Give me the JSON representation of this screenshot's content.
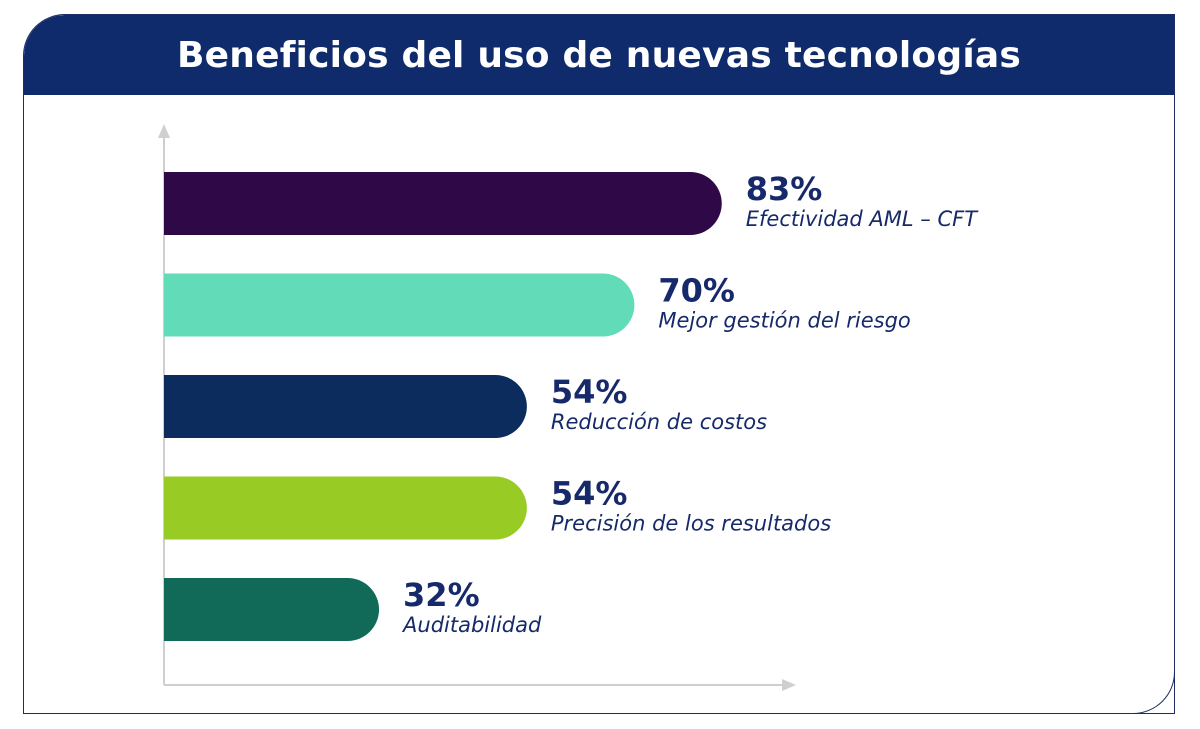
{
  "chart_data": {
    "type": "bar",
    "orientation": "horizontal",
    "title": "Beneficios del uso de nuevas tecnologías",
    "categories": [
      "Efectividad AML – CFT",
      "Mejor gestión del riesgo",
      "Reducción de costos",
      "Precisión de los resultados",
      "Auditabilidad"
    ],
    "values": [
      83,
      70,
      54,
      54,
      32
    ],
    "value_labels": [
      "83%",
      "70%",
      "54%",
      "54%",
      "32%"
    ],
    "colors": [
      "#2f0847",
      "#61dbb8",
      "#0b2c5c",
      "#98cb23",
      "#106a57"
    ],
    "xlim": [
      0,
      100
    ],
    "grid": false,
    "legend": "none"
  }
}
